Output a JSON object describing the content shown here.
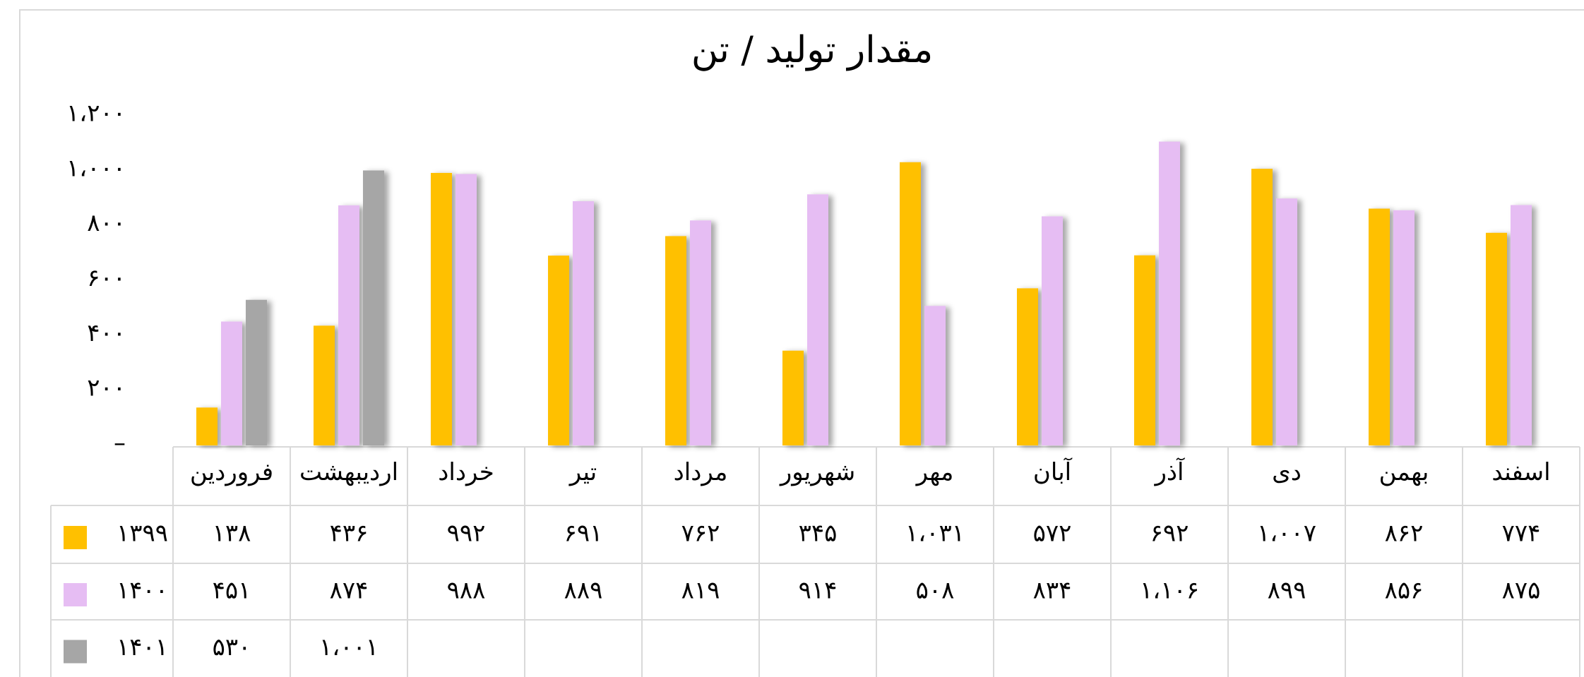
{
  "chart_data": {
    "type": "bar",
    "title": "مقدار تولید / تن",
    "categories": [
      "فروردین",
      "اردیبهشت",
      "خرداد",
      "تیر",
      "مرداد",
      "شهریور",
      "مهر",
      "آبان",
      "آذر",
      "دی",
      "بهمن",
      "اسفند"
    ],
    "series": [
      {
        "name": "۱۳۹۹",
        "color": "#ffc000",
        "values": [
          138,
          436,
          992,
          691,
          762,
          345,
          1031,
          572,
          692,
          1007,
          862,
          774
        ],
        "value_labels": [
          "۱۳۸",
          "۴۳۶",
          "۹۹۲",
          "۶۹۱",
          "۷۶۲",
          "۳۴۵",
          "۱،۰۳۱",
          "۵۷۲",
          "۶۹۲",
          "۱،۰۰۷",
          "۸۶۲",
          "۷۷۴"
        ]
      },
      {
        "name": "۱۴۰۰",
        "color": "#e6bdf3",
        "values": [
          451,
          874,
          988,
          889,
          819,
          914,
          508,
          834,
          1106,
          899,
          856,
          875
        ],
        "value_labels": [
          "۴۵۱",
          "۸۷۴",
          "۹۸۸",
          "۸۸۹",
          "۸۱۹",
          "۹۱۴",
          "۵۰۸",
          "۸۳۴",
          "۱،۱۰۶",
          "۸۹۹",
          "۸۵۶",
          "۸۷۵"
        ]
      },
      {
        "name": "۱۴۰۱",
        "color": "#a6a6a6",
        "values": [
          530,
          1001,
          null,
          null,
          null,
          null,
          null,
          null,
          null,
          null,
          null,
          null
        ],
        "value_labels": [
          "۵۳۰",
          "۱،۰۰۱",
          null,
          null,
          null,
          null,
          null,
          null,
          null,
          null,
          null,
          null
        ]
      }
    ],
    "ylim": [
      0,
      1200
    ],
    "yticks": [
      {
        "value": 0,
        "label": "–"
      },
      {
        "value": 200,
        "label": "۲۰۰"
      },
      {
        "value": 400,
        "label": "۴۰۰"
      },
      {
        "value": 600,
        "label": "۶۰۰"
      },
      {
        "value": 800,
        "label": "۸۰۰"
      },
      {
        "value": 1000,
        "label": "۱،۰۰۰"
      },
      {
        "value": 1200,
        "label": "۱،۲۰۰"
      }
    ],
    "grid": false
  }
}
